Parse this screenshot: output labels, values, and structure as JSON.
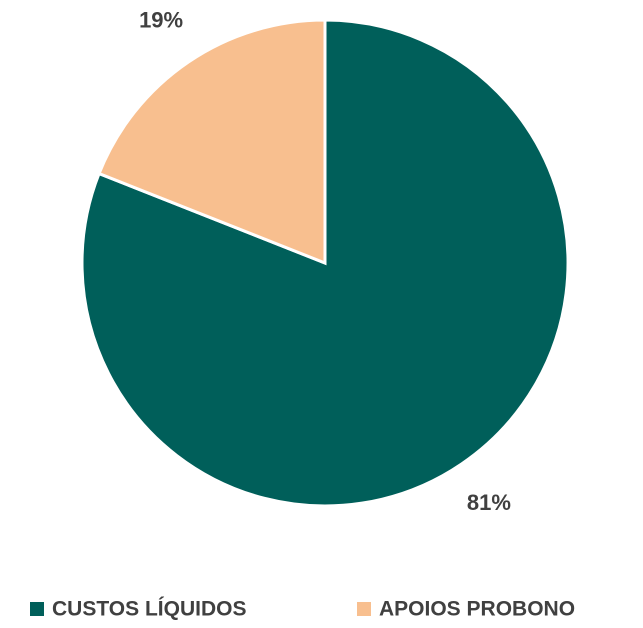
{
  "chart_data": {
    "type": "pie",
    "categories": [
      "CUSTOS LÍQUIDOS",
      "APOIOS PROBONO"
    ],
    "values": [
      81,
      19
    ],
    "value_labels": [
      "81%",
      "19%"
    ],
    "colors": [
      "#005f5a",
      "#f8bf8f"
    ],
    "legend": "bottom"
  }
}
